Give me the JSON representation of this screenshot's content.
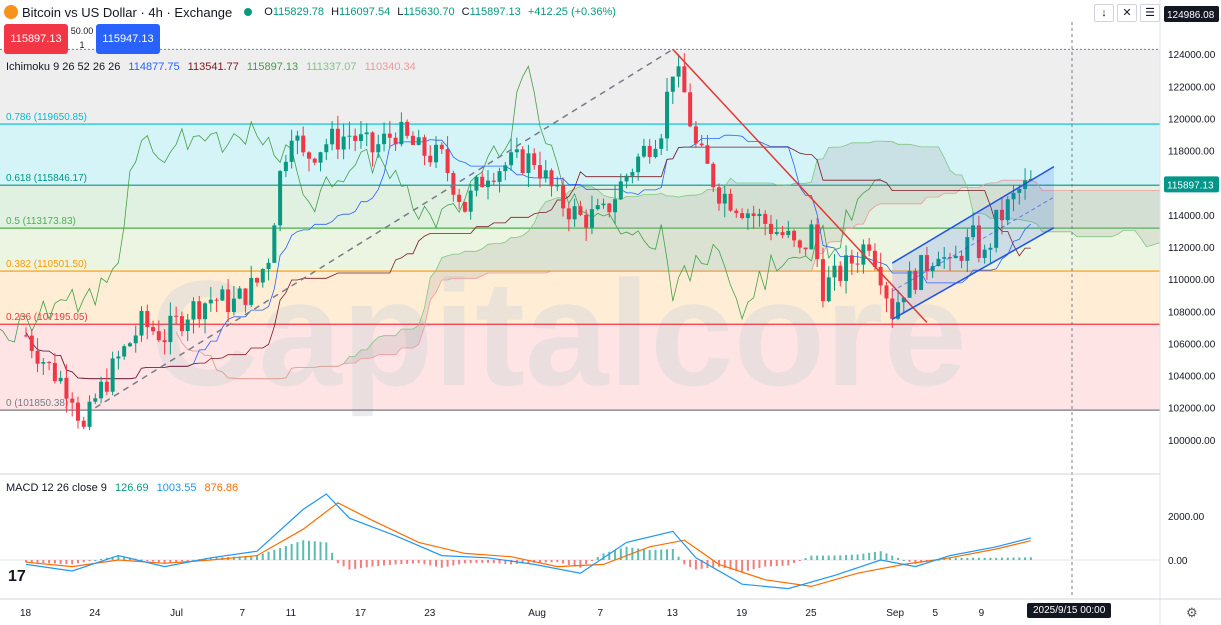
{
  "header": {
    "symbol_title": "Bitcoin vs US Dollar · 4h · Exchange",
    "ohlc": [
      {
        "k": "O",
        "v": "115829.78"
      },
      {
        "k": "H",
        "v": "116097.54"
      },
      {
        "k": "L",
        "v": "115630.70"
      },
      {
        "k": "C",
        "v": "115897.13"
      },
      {
        "k": "",
        "v": "+412.25 (+0.36%)"
      }
    ],
    "sell_price": "115897.13",
    "buy_price": "115947.13",
    "spread": "50.00",
    "quantity": "1"
  },
  "top_right": {
    "price_label": "124986.08",
    "btn_down": "↓",
    "btn_close": "✕",
    "btn_menu": "☰"
  },
  "ichimoku": {
    "label": "Ichimoku 9 26 52 26 26",
    "values": [
      "114877.75",
      "113541.77",
      "115897.13",
      "111337.07",
      "110340.34"
    ],
    "colors": [
      "#2962ff",
      "#801922",
      "#43a047",
      "#a5d6a7",
      "#ef9a9a"
    ]
  },
  "macd": {
    "label": "MACD 12 26 close 9",
    "values": [
      "126.69",
      "1003.55",
      "876.86"
    ],
    "colors": [
      "#089981",
      "#2196f3",
      "#ff6d00"
    ],
    "axis": {
      "ticks": [
        0,
        2000
      ],
      "labels": [
        "0.00",
        "2000.00"
      ]
    }
  },
  "colors": {
    "up": "#089981",
    "down": "#f23645",
    "trendline": "#e53935",
    "channel": "#1e53e5",
    "fib_786": "#00bcd4",
    "fib_618": "#009688",
    "fib_5": "#4caf50",
    "fib_382": "#ff9800",
    "fib_236": "#f23645",
    "fib_0": "#787b86",
    "watermark": "#d9d9d9",
    "sell": "#f23645",
    "buy": "#2962ff"
  },
  "watermark": "Capitalcore",
  "chart_data": {
    "type": "candlestick",
    "title": "Bitcoin vs US Dollar · 4h · Exchange",
    "ylim": [
      98000,
      126000
    ],
    "yticks": [
      100000,
      102000,
      104000,
      106000,
      108000,
      110000,
      112000,
      114000,
      116000,
      118000,
      120000,
      122000,
      124000
    ],
    "ytick_labels": [
      "100000.00",
      "102000.00",
      "104000.00",
      "106000.00",
      "108000.00",
      "110000.00",
      "112000.00",
      "114000.00",
      "116000.00",
      "118000.00",
      "120000.00",
      "122000.00",
      "124000.00"
    ],
    "xticks": [
      {
        "day": 0,
        "label": "18"
      },
      {
        "day": 6,
        "label": "24"
      },
      {
        "day": 13,
        "label": "Jul"
      },
      {
        "day": 19,
        "label": "7"
      },
      {
        "day": 23,
        "label": "11"
      },
      {
        "day": 29,
        "label": "17"
      },
      {
        "day": 35,
        "label": "23"
      },
      {
        "day": 44,
        "label": "Aug"
      },
      {
        "day": 50,
        "label": "7"
      },
      {
        "day": 56,
        "label": "13"
      },
      {
        "day": 62,
        "label": "19"
      },
      {
        "day": 68,
        "label": "25"
      },
      {
        "day": 75,
        "label": "Sep"
      },
      {
        "day": 79,
        "label": "5"
      },
      {
        "day": 83,
        "label": "9"
      }
    ],
    "last_date_label": "2025/9/15   00:00",
    "last_price": 115897.13,
    "last_price_label": "115897.13",
    "fib_levels": [
      {
        "ratio": "0.786",
        "price": 119650.85,
        "label": "0.786 (119650.85)"
      },
      {
        "ratio": "0.618",
        "price": 115846.17,
        "label": "0.618 (115846.17)"
      },
      {
        "ratio": "0.5",
        "price": 113173.83,
        "label": "0.5 (113173.83)"
      },
      {
        "ratio": "0.382",
        "price": 110501.5,
        "label": "0.382 (110501.50)"
      },
      {
        "ratio": "0.236",
        "price": 107195.05,
        "label": "0.236 (107195.05)"
      },
      {
        "ratio": "0",
        "price": 101850.38,
        "label": "0 (101850.38)"
      }
    ],
    "close_path": [
      [
        0,
        106500
      ],
      [
        2,
        104500
      ],
      [
        4,
        103000
      ],
      [
        5,
        100500
      ],
      [
        6,
        102500
      ],
      [
        8,
        105000
      ],
      [
        10,
        107200
      ],
      [
        12,
        106500
      ],
      [
        14,
        108000
      ],
      [
        16,
        108800
      ],
      [
        18,
        108500
      ],
      [
        20,
        109800
      ],
      [
        21,
        111500
      ],
      [
        22,
        116500
      ],
      [
        23,
        119500
      ],
      [
        24,
        117500
      ],
      [
        26,
        118500
      ],
      [
        28,
        119000
      ],
      [
        30,
        118000
      ],
      [
        32,
        119200
      ],
      [
        34,
        118000
      ],
      [
        36,
        117500
      ],
      [
        38,
        114500
      ],
      [
        40,
        116800
      ],
      [
        42,
        117200
      ],
      [
        44,
        117500
      ],
      [
        46,
        115000
      ],
      [
        48,
        113800
      ],
      [
        50,
        114000
      ],
      [
        52,
        116500
      ],
      [
        54,
        118500
      ],
      [
        55,
        119500
      ],
      [
        56,
        123200
      ],
      [
        57,
        121500
      ],
      [
        58,
        118200
      ],
      [
        60,
        115500
      ],
      [
        62,
        114500
      ],
      [
        64,
        113500
      ],
      [
        66,
        112500
      ],
      [
        67,
        111500
      ],
      [
        68,
        113000
      ],
      [
        69,
        109500
      ],
      [
        70,
        110000
      ],
      [
        72,
        111500
      ],
      [
        73,
        112500
      ],
      [
        74,
        110500
      ],
      [
        75,
        108000
      ],
      [
        76,
        109500
      ],
      [
        77,
        110200
      ],
      [
        78,
        111000
      ],
      [
        79,
        112000
      ],
      [
        80,
        110500
      ],
      [
        81,
        111800
      ],
      [
        82,
        112500
      ],
      [
        83,
        111300
      ],
      [
        84,
        113500
      ],
      [
        85,
        114500
      ],
      [
        86,
        115500
      ],
      [
        87,
        115900
      ]
    ],
    "resistance_line": [
      [
        56,
        124300
      ],
      [
        78,
        107300
      ]
    ],
    "trend_dashed": [
      [
        6,
        102000
      ],
      [
        56,
        124300
      ]
    ],
    "channel_upper": [
      [
        75,
        111000
      ],
      [
        89,
        117000
      ]
    ],
    "channel_lower": [
      [
        75,
        107500
      ],
      [
        89,
        113200
      ]
    ],
    "macd_series": {
      "macd": [
        [
          0,
          -200
        ],
        [
          4,
          -500
        ],
        [
          8,
          200
        ],
        [
          12,
          -300
        ],
        [
          16,
          100
        ],
        [
          20,
          400
        ],
        [
          24,
          2300
        ],
        [
          26,
          3000
        ],
        [
          28,
          1900
        ],
        [
          32,
          1100
        ],
        [
          36,
          200
        ],
        [
          40,
          100
        ],
        [
          44,
          -200
        ],
        [
          48,
          -600
        ],
        [
          52,
          800
        ],
        [
          56,
          1300
        ],
        [
          58,
          100
        ],
        [
          62,
          -1100
        ],
        [
          66,
          -1300
        ],
        [
          70,
          -700
        ],
        [
          74,
          0
        ],
        [
          77,
          -300
        ],
        [
          80,
          200
        ],
        [
          84,
          600
        ],
        [
          87,
          1003
        ]
      ],
      "signal": [
        [
          0,
          -100
        ],
        [
          4,
          -300
        ],
        [
          8,
          0
        ],
        [
          12,
          -150
        ],
        [
          16,
          0
        ],
        [
          20,
          200
        ],
        [
          24,
          1400
        ],
        [
          27,
          2600
        ],
        [
          30,
          1800
        ],
        [
          34,
          800
        ],
        [
          38,
          300
        ],
        [
          42,
          150
        ],
        [
          46,
          -300
        ],
        [
          50,
          -200
        ],
        [
          54,
          600
        ],
        [
          57,
          900
        ],
        [
          60,
          -200
        ],
        [
          64,
          -900
        ],
        [
          68,
          -1200
        ],
        [
          72,
          -600
        ],
        [
          76,
          -200
        ],
        [
          80,
          100
        ],
        [
          84,
          500
        ],
        [
          87,
          877
        ]
      ]
    }
  }
}
